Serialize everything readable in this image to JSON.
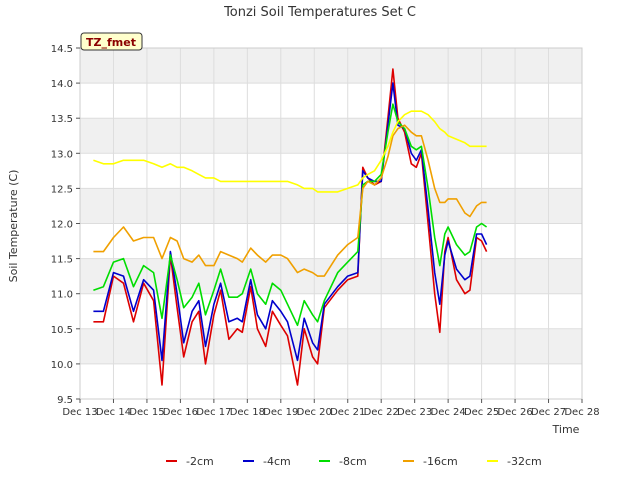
{
  "chart_data": {
    "type": "line",
    "title": "Tonzi Soil Temperatures Set C",
    "xlabel": "Time",
    "ylabel": "Soil Temperature (C)",
    "station_badge": "TZ_fmet",
    "xlim": [
      13,
      28
    ],
    "ylim": [
      9.5,
      14.5
    ],
    "x_ticks": [
      13,
      14,
      15,
      16,
      17,
      18,
      19,
      20,
      21,
      22,
      23,
      24,
      25,
      26,
      27,
      28
    ],
    "x_tick_labels": [
      "Dec 13",
      "Dec 14",
      "Dec 15",
      "Dec 16",
      "Dec 17",
      "Dec 18",
      "Dec 19",
      "Dec 20",
      "Dec 21",
      "Dec 22",
      "Dec 23",
      "Dec 24",
      "Dec 25",
      "Dec 26",
      "Dec 27",
      "Dec 28"
    ],
    "y_ticks": [
      9.5,
      10.0,
      10.5,
      11.0,
      11.5,
      12.0,
      12.5,
      13.0,
      13.5,
      14.0,
      14.5
    ],
    "y_tick_labels": [
      "9.5",
      "10.0",
      "10.5",
      "11.0",
      "11.5",
      "12.0",
      "12.5",
      "13.0",
      "13.5",
      "14.0",
      "14.5"
    ],
    "legend_position": "bottom-center",
    "grid": true,
    "series": [
      {
        "name": "-2cm",
        "color": "#dd0000",
        "points": [
          [
            13.4,
            10.6
          ],
          [
            13.7,
            10.6
          ],
          [
            14.0,
            11.25
          ],
          [
            14.3,
            11.15
          ],
          [
            14.6,
            10.6
          ],
          [
            14.9,
            11.15
          ],
          [
            15.2,
            10.9
          ],
          [
            15.45,
            9.7
          ],
          [
            15.7,
            11.55
          ],
          [
            15.9,
            10.8
          ],
          [
            16.1,
            10.1
          ],
          [
            16.35,
            10.6
          ],
          [
            16.55,
            10.75
          ],
          [
            16.75,
            10.0
          ],
          [
            17.0,
            10.7
          ],
          [
            17.2,
            11.05
          ],
          [
            17.45,
            10.35
          ],
          [
            17.7,
            10.5
          ],
          [
            17.85,
            10.45
          ],
          [
            18.1,
            11.1
          ],
          [
            18.3,
            10.5
          ],
          [
            18.55,
            10.25
          ],
          [
            18.75,
            10.75
          ],
          [
            19.0,
            10.55
          ],
          [
            19.2,
            10.4
          ],
          [
            19.5,
            9.7
          ],
          [
            19.7,
            10.5
          ],
          [
            19.95,
            10.1
          ],
          [
            20.1,
            10.0
          ],
          [
            20.3,
            10.8
          ],
          [
            20.7,
            11.05
          ],
          [
            21.0,
            11.2
          ],
          [
            21.3,
            11.25
          ],
          [
            21.45,
            12.8
          ],
          [
            21.6,
            12.65
          ],
          [
            21.8,
            12.55
          ],
          [
            22.0,
            12.6
          ],
          [
            22.2,
            13.5
          ],
          [
            22.35,
            14.2
          ],
          [
            22.5,
            13.5
          ],
          [
            22.7,
            13.3
          ],
          [
            22.9,
            12.85
          ],
          [
            23.05,
            12.8
          ],
          [
            23.2,
            13.0
          ],
          [
            23.4,
            12.0
          ],
          [
            23.6,
            11.0
          ],
          [
            23.75,
            10.45
          ],
          [
            23.9,
            11.6
          ],
          [
            24.0,
            11.8
          ],
          [
            24.25,
            11.2
          ],
          [
            24.5,
            11.0
          ],
          [
            24.65,
            11.05
          ],
          [
            24.85,
            11.8
          ],
          [
            25.0,
            11.75
          ],
          [
            25.15,
            11.6
          ]
        ]
      },
      {
        "name": "-4cm",
        "color": "#0000cc",
        "points": [
          [
            13.4,
            10.75
          ],
          [
            13.7,
            10.75
          ],
          [
            14.0,
            11.3
          ],
          [
            14.3,
            11.25
          ],
          [
            14.6,
            10.75
          ],
          [
            14.9,
            11.2
          ],
          [
            15.2,
            11.05
          ],
          [
            15.45,
            10.05
          ],
          [
            15.7,
            11.6
          ],
          [
            15.9,
            11.0
          ],
          [
            16.1,
            10.3
          ],
          [
            16.35,
            10.75
          ],
          [
            16.55,
            10.9
          ],
          [
            16.75,
            10.25
          ],
          [
            17.0,
            10.85
          ],
          [
            17.2,
            11.15
          ],
          [
            17.45,
            10.6
          ],
          [
            17.7,
            10.65
          ],
          [
            17.85,
            10.6
          ],
          [
            18.1,
            11.2
          ],
          [
            18.3,
            10.7
          ],
          [
            18.55,
            10.5
          ],
          [
            18.75,
            10.9
          ],
          [
            19.0,
            10.75
          ],
          [
            19.2,
            10.6
          ],
          [
            19.5,
            10.05
          ],
          [
            19.7,
            10.65
          ],
          [
            19.95,
            10.3
          ],
          [
            20.1,
            10.2
          ],
          [
            20.3,
            10.85
          ],
          [
            20.7,
            11.1
          ],
          [
            21.0,
            11.25
          ],
          [
            21.3,
            11.3
          ],
          [
            21.45,
            12.75
          ],
          [
            21.6,
            12.65
          ],
          [
            21.8,
            12.6
          ],
          [
            22.0,
            12.6
          ],
          [
            22.2,
            13.4
          ],
          [
            22.35,
            14.0
          ],
          [
            22.5,
            13.4
          ],
          [
            22.7,
            13.35
          ],
          [
            22.9,
            13.0
          ],
          [
            23.05,
            12.9
          ],
          [
            23.2,
            13.05
          ],
          [
            23.4,
            12.2
          ],
          [
            23.6,
            11.3
          ],
          [
            23.75,
            10.85
          ],
          [
            23.9,
            11.55
          ],
          [
            24.0,
            11.75
          ],
          [
            24.25,
            11.35
          ],
          [
            24.5,
            11.2
          ],
          [
            24.65,
            11.25
          ],
          [
            24.85,
            11.85
          ],
          [
            25.0,
            11.85
          ],
          [
            25.15,
            11.7
          ]
        ]
      },
      {
        "name": "-8cm",
        "color": "#00dd00",
        "points": [
          [
            13.4,
            11.05
          ],
          [
            13.7,
            11.1
          ],
          [
            14.0,
            11.45
          ],
          [
            14.3,
            11.5
          ],
          [
            14.6,
            11.1
          ],
          [
            14.9,
            11.4
          ],
          [
            15.2,
            11.3
          ],
          [
            15.45,
            10.65
          ],
          [
            15.7,
            11.55
          ],
          [
            15.9,
            11.2
          ],
          [
            16.1,
            10.8
          ],
          [
            16.35,
            10.95
          ],
          [
            16.55,
            11.15
          ],
          [
            16.75,
            10.7
          ],
          [
            17.0,
            11.05
          ],
          [
            17.2,
            11.35
          ],
          [
            17.45,
            10.95
          ],
          [
            17.7,
            10.95
          ],
          [
            17.85,
            11.0
          ],
          [
            18.1,
            11.35
          ],
          [
            18.3,
            11.0
          ],
          [
            18.55,
            10.85
          ],
          [
            18.75,
            11.15
          ],
          [
            19.0,
            11.05
          ],
          [
            19.2,
            10.85
          ],
          [
            19.5,
            10.55
          ],
          [
            19.7,
            10.9
          ],
          [
            19.95,
            10.7
          ],
          [
            20.1,
            10.6
          ],
          [
            20.3,
            10.9
          ],
          [
            20.7,
            11.3
          ],
          [
            21.0,
            11.45
          ],
          [
            21.3,
            11.6
          ],
          [
            21.45,
            12.55
          ],
          [
            21.6,
            12.6
          ],
          [
            21.8,
            12.6
          ],
          [
            22.0,
            12.7
          ],
          [
            22.2,
            13.3
          ],
          [
            22.35,
            13.7
          ],
          [
            22.5,
            13.45
          ],
          [
            22.7,
            13.35
          ],
          [
            22.9,
            13.1
          ],
          [
            23.05,
            13.05
          ],
          [
            23.2,
            13.1
          ],
          [
            23.4,
            12.5
          ],
          [
            23.6,
            11.8
          ],
          [
            23.75,
            11.4
          ],
          [
            23.9,
            11.85
          ],
          [
            24.0,
            11.95
          ],
          [
            24.25,
            11.7
          ],
          [
            24.5,
            11.55
          ],
          [
            24.65,
            11.6
          ],
          [
            24.85,
            11.95
          ],
          [
            25.0,
            12.0
          ],
          [
            25.15,
            11.95
          ]
        ]
      },
      {
        "name": "-16cm",
        "color": "#f0a000",
        "points": [
          [
            13.4,
            11.6
          ],
          [
            13.7,
            11.6
          ],
          [
            14.0,
            11.8
          ],
          [
            14.3,
            11.95
          ],
          [
            14.6,
            11.75
          ],
          [
            14.9,
            11.8
          ],
          [
            15.2,
            11.8
          ],
          [
            15.45,
            11.5
          ],
          [
            15.7,
            11.8
          ],
          [
            15.9,
            11.75
          ],
          [
            16.1,
            11.5
          ],
          [
            16.35,
            11.45
          ],
          [
            16.55,
            11.55
          ],
          [
            16.75,
            11.4
          ],
          [
            17.0,
            11.4
          ],
          [
            17.2,
            11.6
          ],
          [
            17.45,
            11.55
          ],
          [
            17.7,
            11.5
          ],
          [
            17.85,
            11.45
          ],
          [
            18.1,
            11.65
          ],
          [
            18.3,
            11.55
          ],
          [
            18.55,
            11.45
          ],
          [
            18.75,
            11.55
          ],
          [
            19.0,
            11.55
          ],
          [
            19.2,
            11.5
          ],
          [
            19.5,
            11.3
          ],
          [
            19.7,
            11.35
          ],
          [
            19.95,
            11.3
          ],
          [
            20.1,
            11.25
          ],
          [
            20.3,
            11.25
          ],
          [
            20.7,
            11.55
          ],
          [
            21.0,
            11.7
          ],
          [
            21.3,
            11.8
          ],
          [
            21.45,
            12.5
          ],
          [
            21.6,
            12.6
          ],
          [
            21.8,
            12.55
          ],
          [
            22.0,
            12.65
          ],
          [
            22.2,
            12.95
          ],
          [
            22.35,
            13.25
          ],
          [
            22.5,
            13.35
          ],
          [
            22.7,
            13.4
          ],
          [
            22.9,
            13.3
          ],
          [
            23.05,
            13.25
          ],
          [
            23.2,
            13.25
          ],
          [
            23.4,
            12.9
          ],
          [
            23.6,
            12.5
          ],
          [
            23.75,
            12.3
          ],
          [
            23.9,
            12.3
          ],
          [
            24.0,
            12.35
          ],
          [
            24.25,
            12.35
          ],
          [
            24.5,
            12.15
          ],
          [
            24.65,
            12.1
          ],
          [
            24.85,
            12.25
          ],
          [
            25.0,
            12.3
          ],
          [
            25.15,
            12.3
          ]
        ]
      },
      {
        "name": "-32cm",
        "color": "#ffff00",
        "points": [
          [
            13.4,
            12.9
          ],
          [
            13.7,
            12.85
          ],
          [
            14.0,
            12.85
          ],
          [
            14.3,
            12.9
          ],
          [
            14.6,
            12.9
          ],
          [
            14.9,
            12.9
          ],
          [
            15.2,
            12.85
          ],
          [
            15.45,
            12.8
          ],
          [
            15.7,
            12.85
          ],
          [
            15.9,
            12.8
          ],
          [
            16.1,
            12.8
          ],
          [
            16.35,
            12.75
          ],
          [
            16.55,
            12.7
          ],
          [
            16.75,
            12.65
          ],
          [
            17.0,
            12.65
          ],
          [
            17.2,
            12.6
          ],
          [
            17.45,
            12.6
          ],
          [
            17.7,
            12.6
          ],
          [
            17.85,
            12.6
          ],
          [
            18.1,
            12.6
          ],
          [
            18.3,
            12.6
          ],
          [
            18.55,
            12.6
          ],
          [
            18.75,
            12.6
          ],
          [
            19.0,
            12.6
          ],
          [
            19.2,
            12.6
          ],
          [
            19.5,
            12.55
          ],
          [
            19.7,
            12.5
          ],
          [
            19.95,
            12.5
          ],
          [
            20.1,
            12.45
          ],
          [
            20.3,
            12.45
          ],
          [
            20.7,
            12.45
          ],
          [
            21.0,
            12.5
          ],
          [
            21.3,
            12.55
          ],
          [
            21.45,
            12.65
          ],
          [
            21.6,
            12.7
          ],
          [
            21.8,
            12.75
          ],
          [
            22.0,
            12.9
          ],
          [
            22.2,
            13.1
          ],
          [
            22.35,
            13.3
          ],
          [
            22.5,
            13.45
          ],
          [
            22.7,
            13.55
          ],
          [
            22.9,
            13.6
          ],
          [
            23.05,
            13.6
          ],
          [
            23.2,
            13.6
          ],
          [
            23.4,
            13.55
          ],
          [
            23.6,
            13.45
          ],
          [
            23.75,
            13.35
          ],
          [
            23.9,
            13.3
          ],
          [
            24.0,
            13.25
          ],
          [
            24.25,
            13.2
          ],
          [
            24.5,
            13.15
          ],
          [
            24.65,
            13.1
          ],
          [
            24.85,
            13.1
          ],
          [
            25.0,
            13.1
          ],
          [
            25.15,
            13.1
          ]
        ]
      }
    ]
  }
}
